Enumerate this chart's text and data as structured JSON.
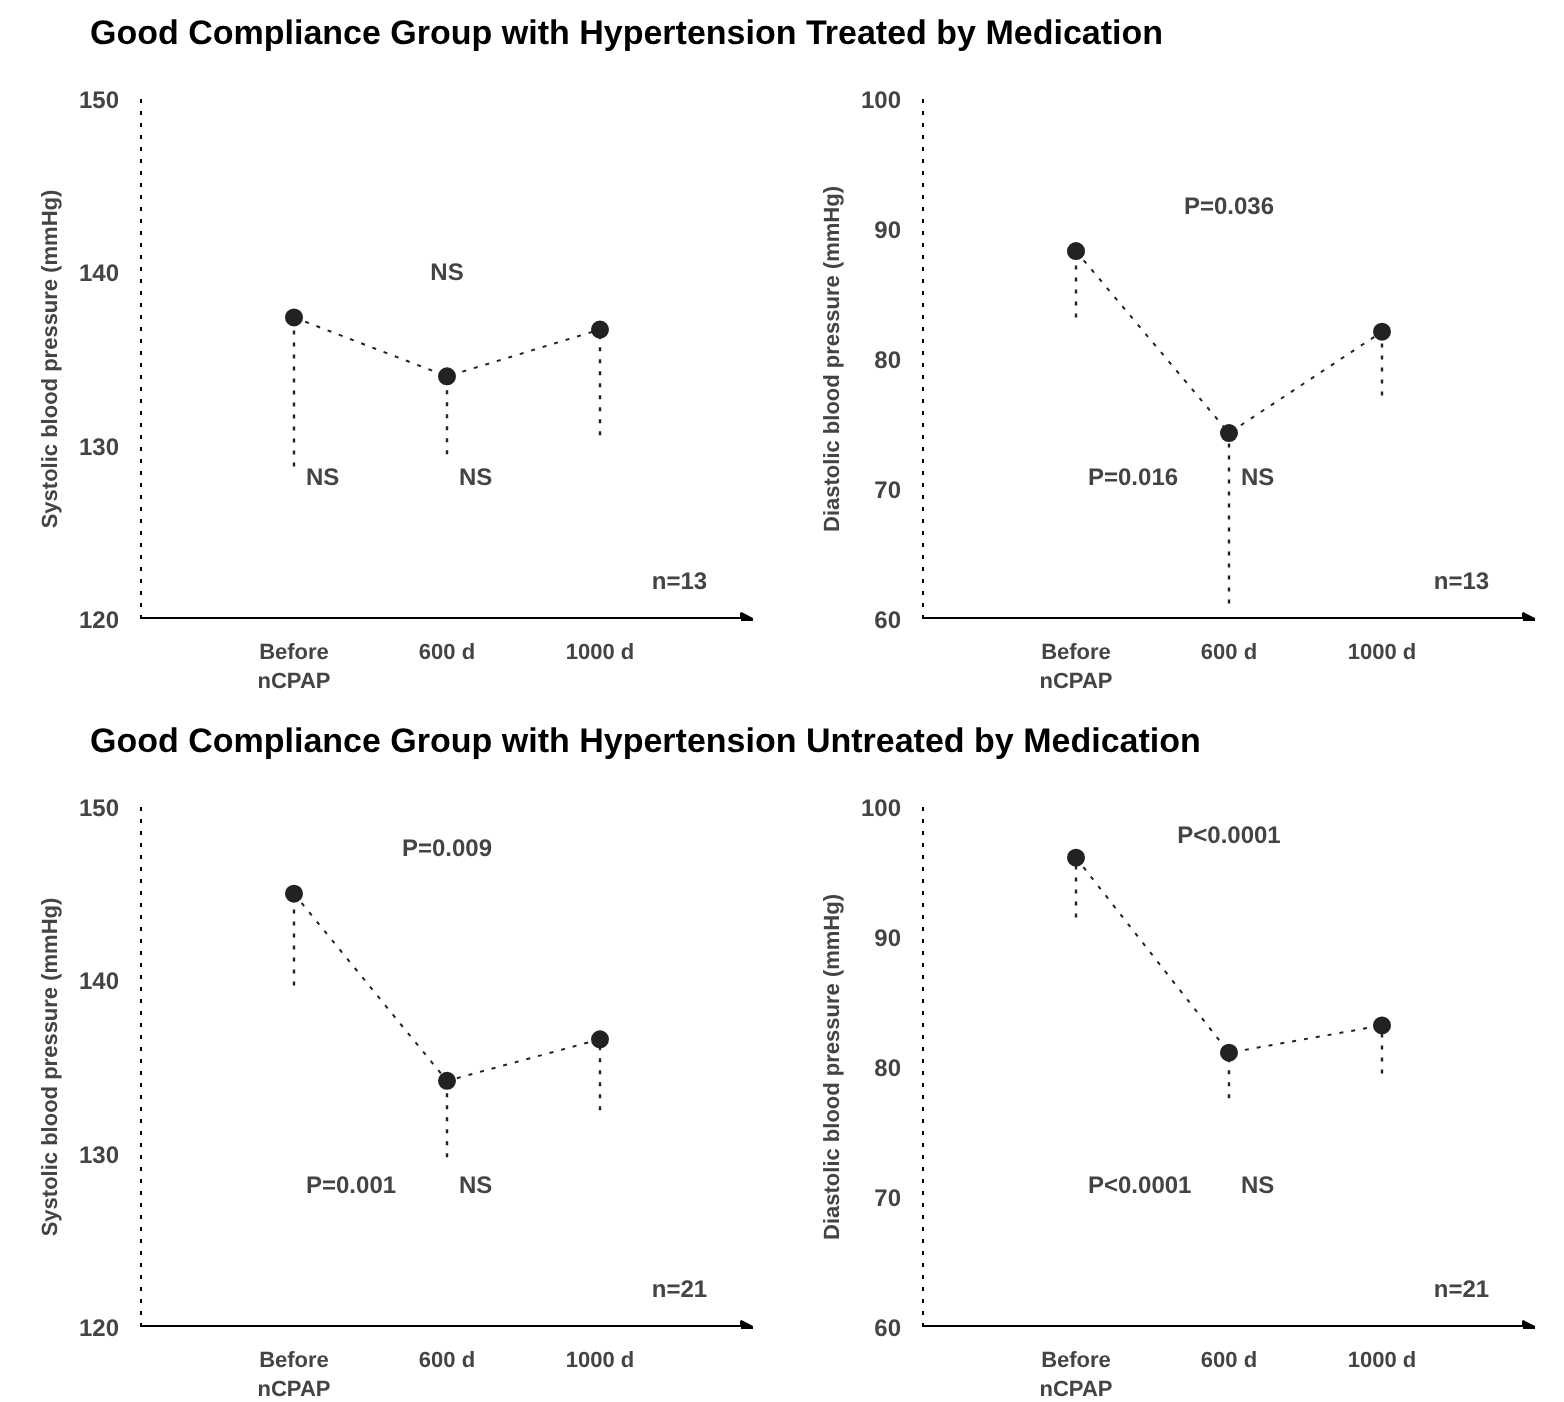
{
  "chart_data": [
    {
      "type": "line",
      "title": "Good Compliance Group with Hypertension Treated by Medication",
      "ylabel": "Systolic blood pressure (mmHg)",
      "categories": [
        "Before\nnCPAP",
        "600 d",
        "1000 d"
      ],
      "series": [
        {
          "color": "#222222",
          "values": [
            137.4,
            134.0,
            136.7
          ],
          "errors": [
            [
              128.8,
              137.4
            ],
            [
              129.5,
              134.0
            ],
            [
              130.6,
              136.7
            ]
          ]
        }
      ],
      "ylim": [
        120,
        150
      ],
      "yticks": [
        120,
        130,
        140,
        150
      ],
      "grid": false,
      "marker": "circle",
      "line_style": "dotted",
      "annotations": [
        "NS",
        "NS",
        "NS",
        "n=13"
      ]
    },
    {
      "type": "line",
      "ylabel": "Diastolic blood pressure (mmHg)",
      "categories": [
        "Before\nnCPAP",
        "600 d",
        "1000 d"
      ],
      "series": [
        {
          "color": "#222222",
          "values": [
            88.3,
            74.3,
            82.1
          ],
          "errors": [
            [
              83.2,
              88.3
            ],
            [
              61.2,
              74.3
            ],
            [
              77.2,
              82.1
            ]
          ]
        }
      ],
      "ylim": [
        60,
        100
      ],
      "yticks": [
        60,
        70,
        80,
        90,
        100
      ],
      "grid": false,
      "marker": "circle",
      "line_style": "dotted",
      "annotations": [
        "P=0.036",
        "P=0.016",
        "NS",
        "n=13"
      ]
    },
    {
      "type": "line",
      "title": "Good Compliance Group with Hypertension Untreated by Medication",
      "ylabel": "Systolic blood pressure (mmHg)",
      "categories": [
        "Before\nnCPAP",
        "600 d",
        "1000 d"
      ],
      "series": [
        {
          "color": "#222222",
          "values": [
            145.0,
            134.2,
            136.6
          ],
          "errors": [
            [
              139.7,
              145.0
            ],
            [
              129.8,
              134.2
            ],
            [
              132.5,
              136.6
            ]
          ]
        }
      ],
      "ylim": [
        120,
        150
      ],
      "yticks": [
        120,
        130,
        140,
        150
      ],
      "grid": false,
      "marker": "circle",
      "line_style": "dotted",
      "annotations": [
        "P=0.009",
        "P=0.001",
        "NS",
        "n=21"
      ]
    },
    {
      "type": "line",
      "ylabel": "Diastolic blood pressure (mmHg)",
      "categories": [
        "Before\nnCPAP",
        "600 d",
        "1000 d"
      ],
      "series": [
        {
          "color": "#222222",
          "values": [
            96.1,
            81.1,
            83.2
          ],
          "errors": [
            [
              91.5,
              96.1
            ],
            [
              77.6,
              81.1
            ],
            [
              79.5,
              83.2
            ]
          ]
        }
      ],
      "ylim": [
        60,
        100
      ],
      "yticks": [
        60,
        70,
        80,
        90,
        100
      ],
      "grid": false,
      "marker": "circle",
      "line_style": "dotted",
      "annotations": [
        "P<0.0001",
        "P<0.0001",
        "NS",
        "n=21"
      ]
    }
  ]
}
